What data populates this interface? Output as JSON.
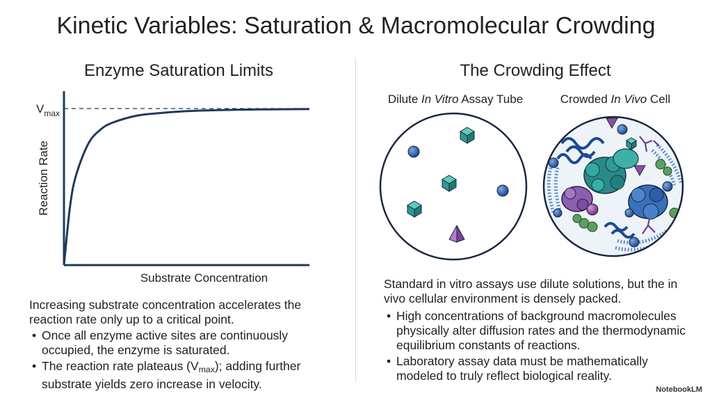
{
  "title": "Kinetic Variables: Saturation & Macromolecular Crowding",
  "left": {
    "heading": "Enzyme Saturation Limits",
    "intro": "Increasing substrate concentration accelerates the reaction rate only up to a critical point.",
    "bullets": [
      {
        "text": "Once all enzyme active sites are continuously occupied, the enzyme is saturated."
      },
      {
        "pre": "The reaction rate plateaus (V",
        "sub": "max",
        "post": "); adding further substrate yields zero increase in velocity."
      }
    ]
  },
  "chart_data": {
    "type": "line",
    "title": "",
    "xlabel": "Substrate Concentration",
    "ylabel": "Reaction Rate",
    "vmax_label": {
      "main": "V",
      "sub": "max"
    },
    "ylim": [
      0,
      1.0
    ],
    "xlim": [
      0,
      10
    ],
    "vmax": 0.9,
    "series": [
      {
        "x": [
          0,
          0.25,
          0.5,
          1,
          1.5,
          2,
          3,
          4,
          5,
          6,
          7,
          8,
          9,
          10
        ],
        "y": [
          0,
          0.34,
          0.52,
          0.7,
          0.78,
          0.82,
          0.86,
          0.875,
          0.885,
          0.89,
          0.893,
          0.895,
          0.896,
          0.897
        ]
      }
    ],
    "grid": false,
    "legend": "none"
  },
  "right": {
    "heading": "The Crowding Effect",
    "dilute_label": {
      "pre": "Dilute ",
      "em": "In Vitro",
      "post": " Assay Tube"
    },
    "crowded_label": {
      "pre": "Crowded ",
      "em": "In Vivo",
      "post": " Cell"
    },
    "intro": "Standard in vitro assays use dilute solutions, but the in vivo cellular environment is densely packed.",
    "bullets": [
      "High concentrations of background macromolecules physically alter diffusion rates and the thermodynamic equilibrium constants of reactions.",
      "Laboratory assay data must be mathematically modeled to truly reflect biological reality."
    ]
  },
  "colors": {
    "curve": "#1f3a5c",
    "sphere": "#2f63b0",
    "cube": "#2a9a8e",
    "pyramid": "#8a4fa8",
    "coil": "#3a6fb0",
    "blob_teal": "#2a8a88",
    "blob_purple": "#8a5fb0",
    "blob_green": "#5aa060",
    "lipid": "#5a90c8"
  },
  "brand": "NotebookLM"
}
